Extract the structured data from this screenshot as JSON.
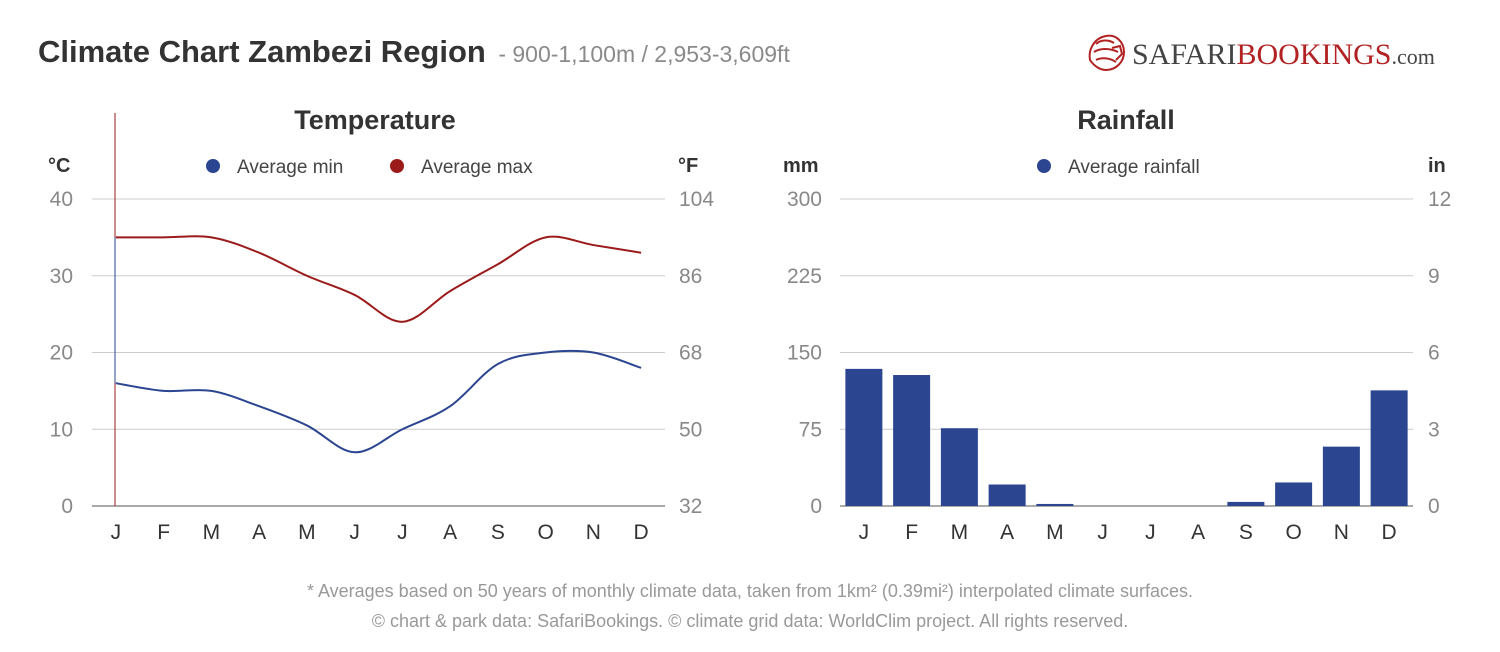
{
  "header": {
    "title": "Climate Chart Zambezi Region",
    "subtitle": "- 900-1,100m / 2,953-3,609ft"
  },
  "brand": {
    "name_part1": "SAFARI",
    "name_part2": "BOOKINGS",
    "name_part3": ".com",
    "logo_icon": "lion-head-icon",
    "color_dark": "#444444",
    "color_red": "#b22222"
  },
  "colors": {
    "avg_min": "#2b4590",
    "avg_max": "#9b1b1b",
    "rain": "#2b4590",
    "grid": "#cccccc",
    "tick": "#888888"
  },
  "chart_data": [
    {
      "type": "line",
      "title": "Temperature",
      "ylabel": "°C",
      "y2label": "°F",
      "categories": [
        "J",
        "F",
        "M",
        "A",
        "M",
        "J",
        "J",
        "A",
        "S",
        "O",
        "N",
        "D"
      ],
      "series": [
        {
          "name": "Average min",
          "values": [
            16,
            15,
            15,
            13,
            10.5,
            7,
            10,
            13,
            18.5,
            20,
            20,
            18
          ]
        },
        {
          "name": "Average max",
          "values": [
            35,
            35,
            35,
            33,
            30,
            27.5,
            24,
            28,
            31.5,
            35,
            34,
            33
          ]
        }
      ],
      "ylim": [
        0,
        40
      ],
      "yticks": [
        "0",
        "10",
        "20",
        "30",
        "40"
      ],
      "y2ticks": [
        "32",
        "50",
        "68",
        "86",
        "104"
      ],
      "grid": true,
      "legend": "top-center"
    },
    {
      "type": "bar",
      "title": "Rainfall",
      "ylabel": "mm",
      "y2label": "in",
      "categories": [
        "J",
        "F",
        "M",
        "A",
        "M",
        "J",
        "J",
        "A",
        "S",
        "O",
        "N",
        "D"
      ],
      "series": [
        {
          "name": "Average rainfall",
          "values": [
            134,
            128,
            76,
            21,
            2,
            0,
            0,
            0,
            4,
            23,
            58,
            113
          ]
        }
      ],
      "ylim": [
        0,
        300
      ],
      "yticks": [
        "0",
        "75",
        "150",
        "225",
        "300"
      ],
      "y2ticks": [
        "0",
        "3",
        "6",
        "9",
        "12"
      ],
      "grid": true,
      "legend": "top-center"
    }
  ],
  "footnotes": {
    "line1": "* Averages based on 50 years of monthly climate data, taken from 1km² (0.39mi²) interpolated climate surfaces.",
    "line2": "© chart & park data: SafariBookings. © climate grid data: WorldClim project. All rights reserved."
  }
}
